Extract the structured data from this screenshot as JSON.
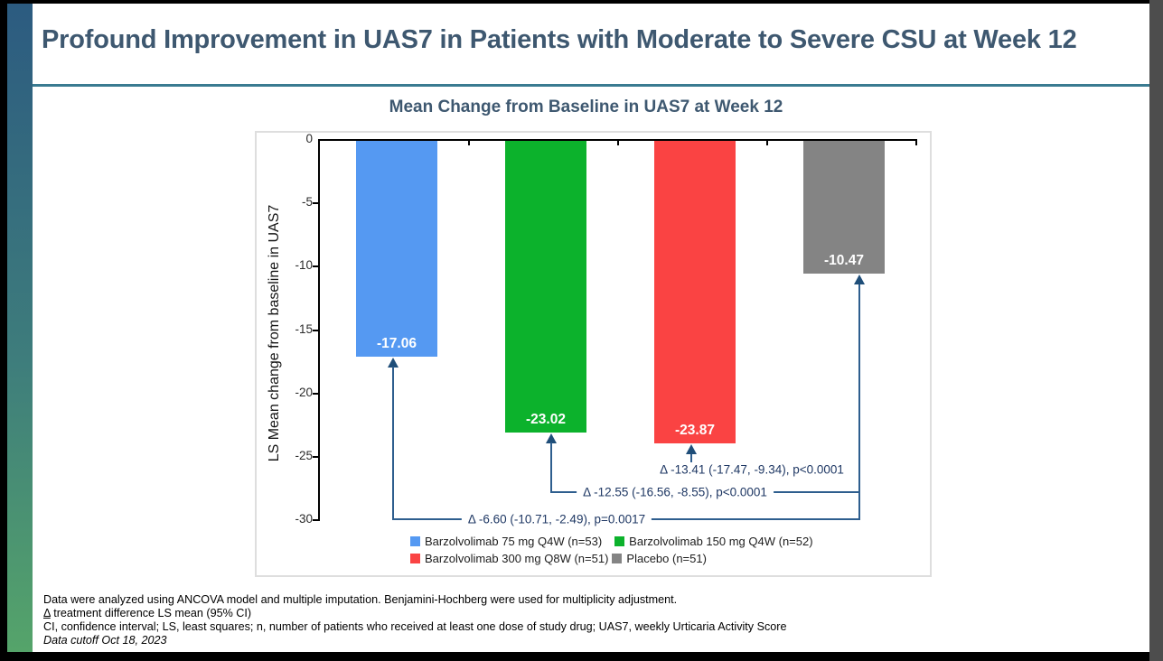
{
  "slide": {
    "title": "Profound Improvement in UAS7 in Patients with Moderate to Severe CSU at Week 12",
    "accent_rule_color": "#3A7B91",
    "sidebar_gradient_top": "#2C5B80",
    "sidebar_gradient_bottom": "#55A46A",
    "title_color": "#3E5870"
  },
  "chart_data": {
    "type": "bar",
    "title": "Mean Change from Baseline in UAS7 at Week 12",
    "xlabel": "",
    "ylabel": "LS Mean change from baseline in UAS7",
    "ylim": [
      -30,
      0
    ],
    "y_ticks": [
      "0",
      "-5",
      "-10",
      "-15",
      "-20",
      "-25",
      "-30"
    ],
    "grid": false,
    "legend_position": "bottom",
    "categories": [
      "Barzolvolimab 75 mg Q4W (n=53)",
      "Barzolvolimab 150 mg Q4W (n=52)",
      "Barzolvolimab 300 mg Q8W (n=51)",
      "Placebo (n=51)"
    ],
    "values": [
      -17.06,
      -23.02,
      -23.87,
      -10.47
    ],
    "bar_labels": [
      "-17.06",
      "-23.02",
      "-23.87",
      "-10.47"
    ],
    "bar_colors": [
      "#5599F2",
      "#0CB22C",
      "#FA4343",
      "#848484"
    ],
    "annotations": [
      {
        "from": "Barzolvolimab 75 mg Q4W",
        "to": "Placebo",
        "label": "Δ -6.60 (-10.71, -2.49), p=0.0017"
      },
      {
        "from": "Barzolvolimab 150 mg Q4W",
        "to": "Placebo",
        "label": "Δ -12.55 (-16.56, -8.55), p<0.0001"
      },
      {
        "from": "Barzolvolimab 300 mg Q8W",
        "to": "Placebo",
        "label": "Δ -13.41 (-17.47, -9.34), p<0.0001"
      }
    ],
    "annotation_line_color": "#2E5E8E",
    "annotation_text_color": "#1F3864"
  },
  "legend": {
    "items": [
      {
        "label": "Barzolvolimab 75 mg Q4W (n=53)",
        "color": "#5599F2"
      },
      {
        "label": "Barzolvolimab 150 mg Q4W (n=52)",
        "color": "#0CB22C"
      },
      {
        "label": "Barzolvolimab 300 mg Q8W (n=51)",
        "color": "#FA4343"
      },
      {
        "label": "Placebo (n=51)",
        "color": "#848484"
      }
    ]
  },
  "footnotes": {
    "line1": "Data were analyzed using ANCOVA model and multiple imputation. Benjamini-Hochberg were used for multiplicity adjustment.",
    "delta_symbol": "Δ",
    "line2_rest": " treatment difference LS mean (95% CI)",
    "line3": "CI, confidence interval; LS, least squares; n, number of patients who received at least one dose of study drug; UAS7, weekly Urticaria Activity Score",
    "line4": "Data cutoff Oct 18, 2023"
  }
}
